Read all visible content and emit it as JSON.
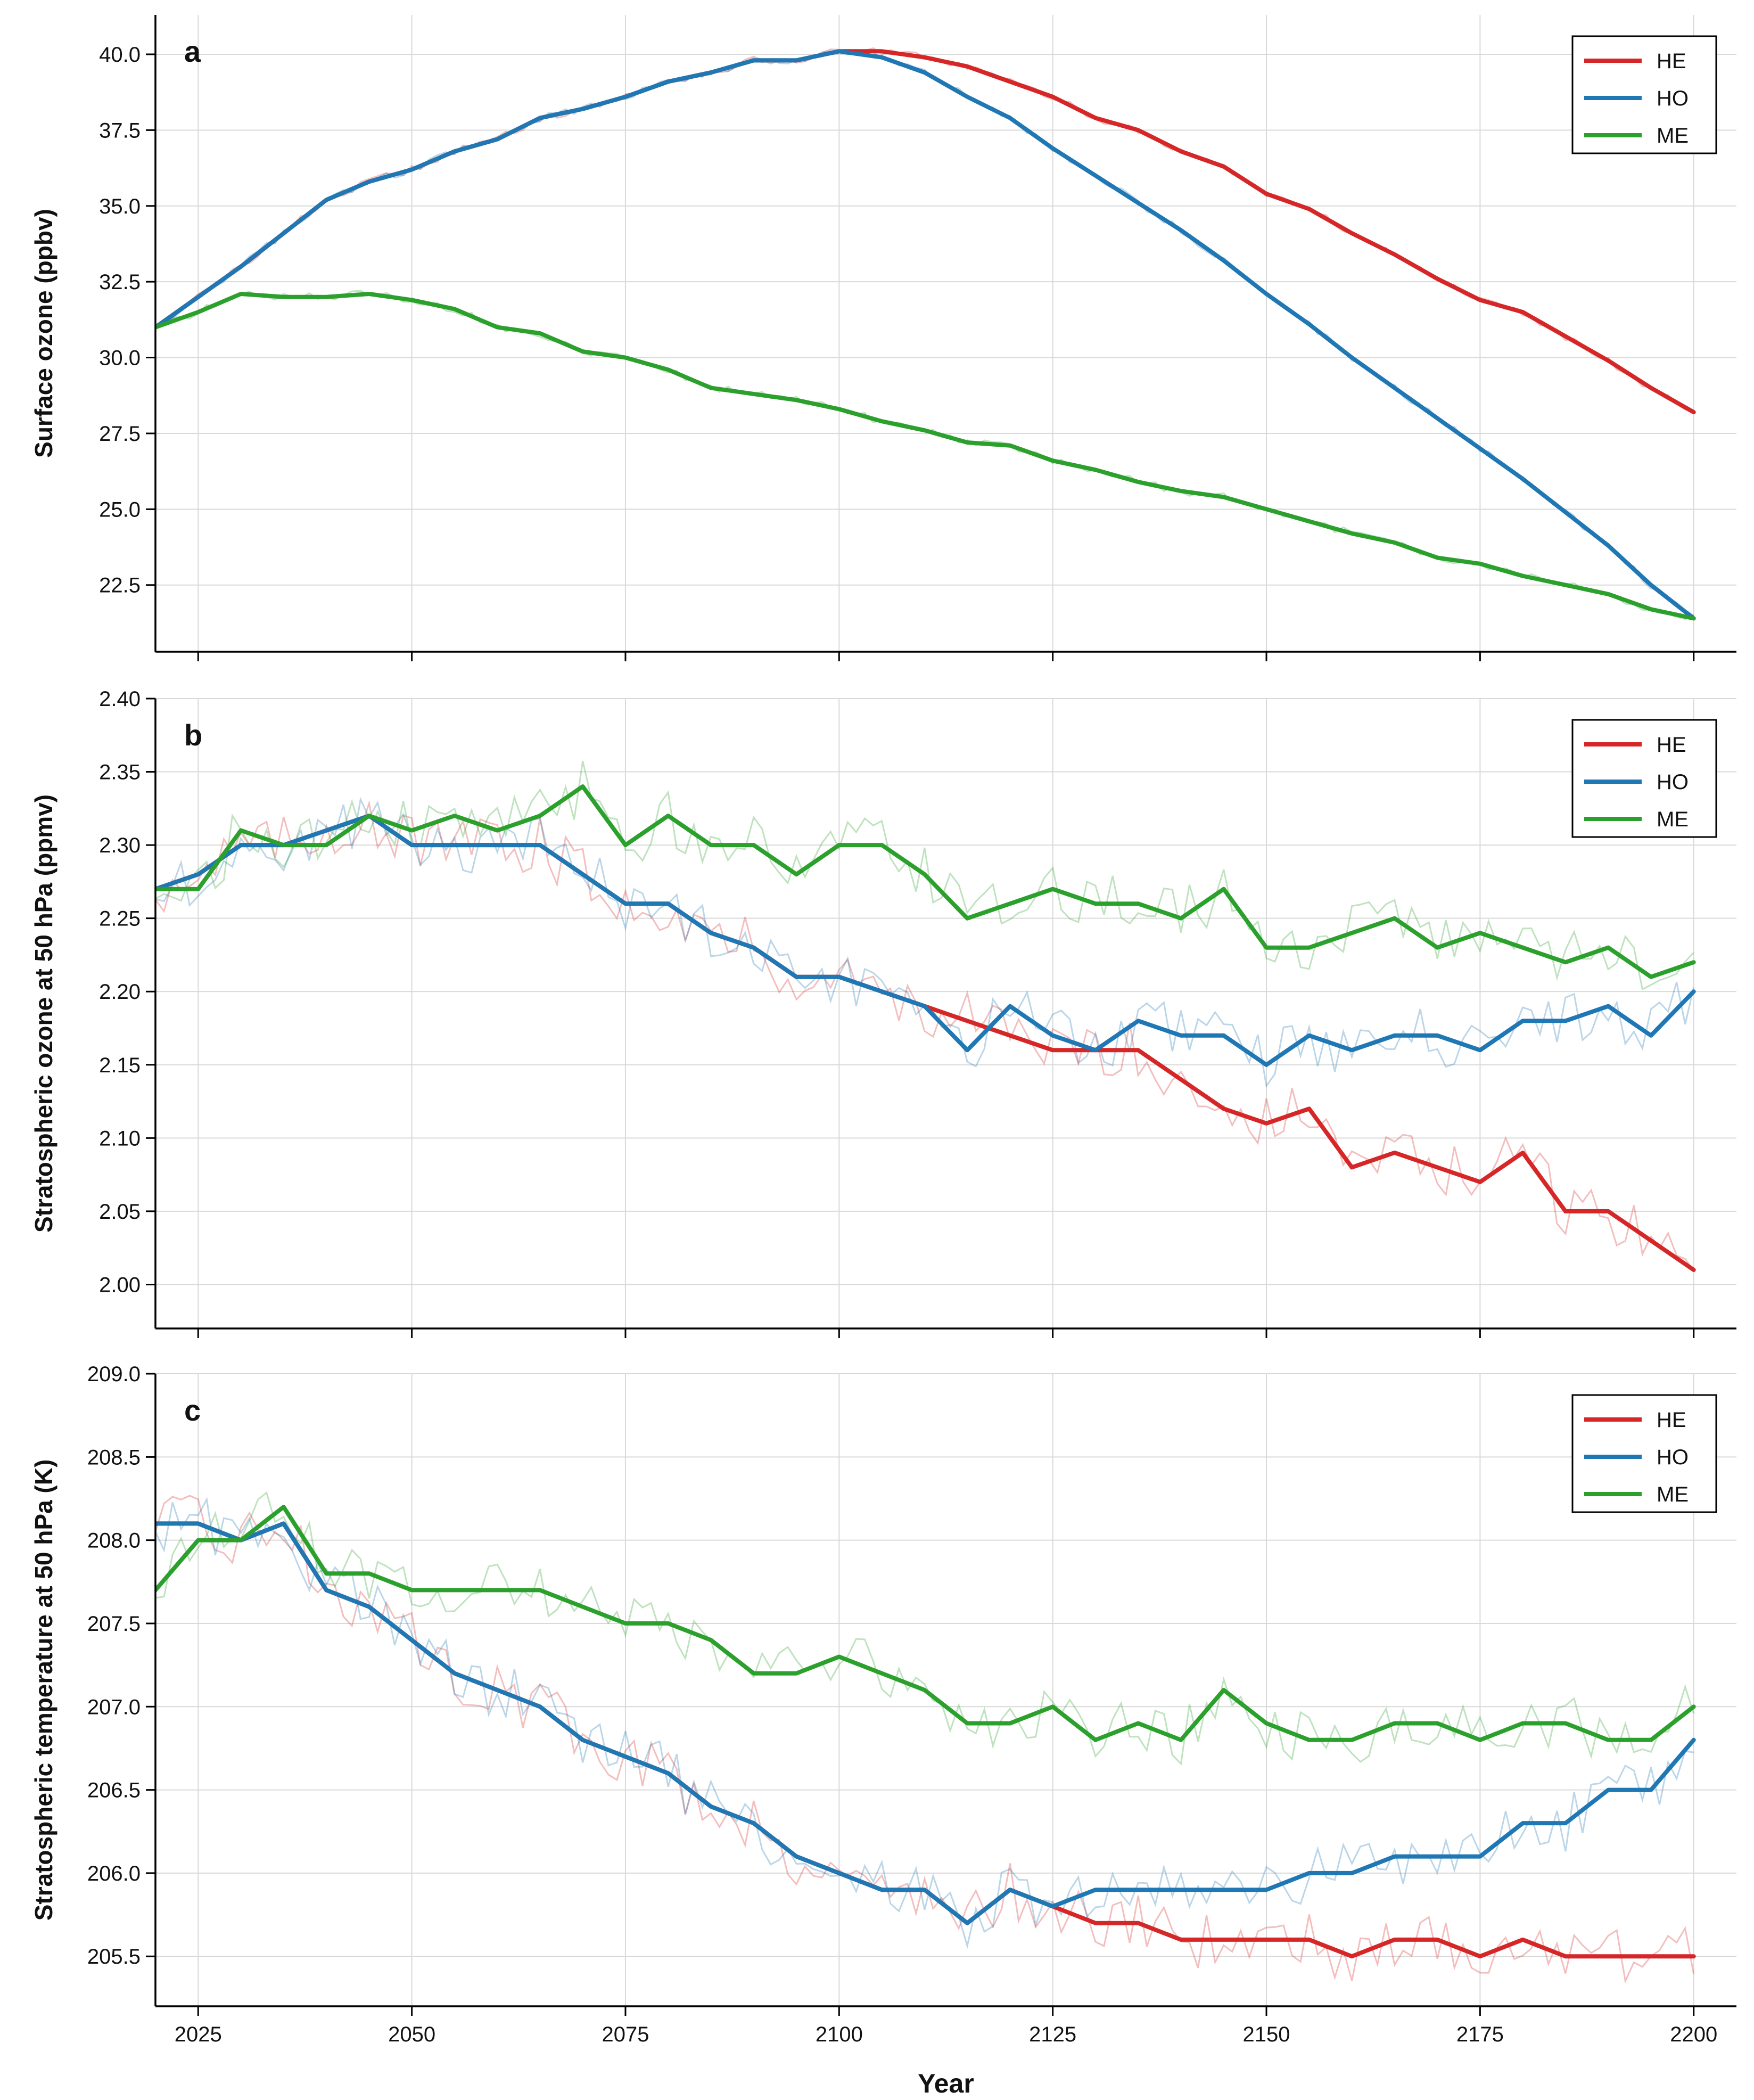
{
  "colors": {
    "HE": "#d62728",
    "HO": "#1f77b4",
    "ME": "#2ca02c"
  },
  "chart_data": [
    {
      "type": "line",
      "panel": "a",
      "ylabel": "Surface ozone (ppbv)",
      "xlabel": "",
      "xlim": [
        2020,
        2205
      ],
      "ylim": [
        20.3,
        41.3
      ],
      "xticks": [
        2025,
        2050,
        2075,
        2100,
        2125,
        2150,
        2175,
        2200
      ],
      "xtick_labels_shown": false,
      "yticks": [
        22.5,
        25.0,
        27.5,
        30.0,
        32.5,
        35.0,
        37.5,
        40.0
      ],
      "ytick_labels": [
        "22.5",
        "25.0",
        "27.5",
        "30.0",
        "32.5",
        "35.0",
        "37.5",
        "40.0"
      ],
      "legend": [
        "HE",
        "HO",
        "ME"
      ],
      "legend_position": "top-right",
      "series": [
        {
          "name": "HE",
          "x": [
            2020,
            2025,
            2030,
            2035,
            2040,
            2045,
            2050,
            2055,
            2060,
            2065,
            2070,
            2075,
            2080,
            2085,
            2090,
            2095,
            2100,
            2105,
            2110,
            2115,
            2120,
            2125,
            2130,
            2135,
            2140,
            2145,
            2150,
            2155,
            2160,
            2165,
            2170,
            2175,
            2180,
            2185,
            2190,
            2195,
            2200
          ],
          "values": [
            31.0,
            32.0,
            33.0,
            34.1,
            35.2,
            35.8,
            36.2,
            36.8,
            37.2,
            37.9,
            38.2,
            38.6,
            39.1,
            39.4,
            39.8,
            39.8,
            40.1,
            40.1,
            39.9,
            39.6,
            39.1,
            38.6,
            37.9,
            37.5,
            36.8,
            36.3,
            35.4,
            34.9,
            34.1,
            33.4,
            32.6,
            31.9,
            31.5,
            30.7,
            29.9,
            29.0,
            28.2
          ]
        },
        {
          "name": "HO",
          "x": [
            2020,
            2025,
            2030,
            2035,
            2040,
            2045,
            2050,
            2055,
            2060,
            2065,
            2070,
            2075,
            2080,
            2085,
            2090,
            2095,
            2100,
            2105,
            2110,
            2115,
            2120,
            2125,
            2130,
            2135,
            2140,
            2145,
            2150,
            2155,
            2160,
            2165,
            2170,
            2175,
            2180,
            2185,
            2190,
            2195,
            2200
          ],
          "values": [
            31.0,
            32.0,
            33.0,
            34.1,
            35.2,
            35.8,
            36.2,
            36.8,
            37.2,
            37.9,
            38.2,
            38.6,
            39.1,
            39.4,
            39.8,
            39.8,
            40.1,
            39.9,
            39.4,
            38.6,
            37.9,
            36.9,
            36.0,
            35.1,
            34.2,
            33.2,
            32.1,
            31.1,
            30.0,
            29.0,
            28.0,
            27.0,
            26.0,
            24.9,
            23.8,
            22.5,
            21.4
          ]
        },
        {
          "name": "ME",
          "x": [
            2020,
            2025,
            2030,
            2035,
            2040,
            2045,
            2050,
            2055,
            2060,
            2065,
            2070,
            2075,
            2080,
            2085,
            2090,
            2095,
            2100,
            2105,
            2110,
            2115,
            2120,
            2125,
            2130,
            2135,
            2140,
            2145,
            2150,
            2155,
            2160,
            2165,
            2170,
            2175,
            2180,
            2185,
            2190,
            2195,
            2200
          ],
          "values": [
            31.0,
            31.5,
            32.1,
            32.0,
            32.0,
            32.1,
            31.9,
            31.6,
            31.0,
            30.8,
            30.2,
            30.0,
            29.6,
            29.0,
            28.8,
            28.6,
            28.3,
            27.9,
            27.6,
            27.2,
            27.1,
            26.6,
            26.3,
            25.9,
            25.6,
            25.4,
            25.0,
            24.6,
            24.2,
            23.9,
            23.4,
            23.2,
            22.8,
            22.5,
            22.2,
            21.7,
            21.4
          ]
        }
      ]
    },
    {
      "type": "line",
      "panel": "b",
      "ylabel": "Stratospheric ozone at 50 hPa (ppmv)",
      "xlabel": "",
      "xlim": [
        2020,
        2205
      ],
      "ylim": [
        1.97,
        2.4
      ],
      "xticks": [
        2025,
        2050,
        2075,
        2100,
        2125,
        2150,
        2175,
        2200
      ],
      "xtick_labels_shown": false,
      "yticks": [
        2.0,
        2.05,
        2.1,
        2.15,
        2.2,
        2.25,
        2.3,
        2.35,
        2.4
      ],
      "ytick_labels": [
        "2.00",
        "2.05",
        "2.10",
        "2.15",
        "2.20",
        "2.25",
        "2.30",
        "2.35",
        "2.40"
      ],
      "legend": [
        "HE",
        "HO",
        "ME"
      ],
      "legend_position": "top-right",
      "series": [
        {
          "name": "HE",
          "x": [
            2020,
            2025,
            2030,
            2035,
            2040,
            2045,
            2050,
            2055,
            2060,
            2065,
            2070,
            2075,
            2080,
            2085,
            2090,
            2095,
            2100,
            2105,
            2110,
            2115,
            2120,
            2125,
            2130,
            2135,
            2140,
            2145,
            2150,
            2155,
            2160,
            2165,
            2170,
            2175,
            2180,
            2185,
            2190,
            2195,
            2200
          ],
          "values": [
            2.27,
            2.28,
            2.3,
            2.3,
            2.31,
            2.32,
            2.3,
            2.3,
            2.3,
            2.3,
            2.28,
            2.26,
            2.26,
            2.24,
            2.23,
            2.21,
            2.21,
            2.2,
            2.19,
            2.18,
            2.17,
            2.16,
            2.16,
            2.16,
            2.14,
            2.12,
            2.11,
            2.12,
            2.08,
            2.09,
            2.08,
            2.07,
            2.09,
            2.05,
            2.05,
            2.03,
            2.01
          ]
        },
        {
          "name": "HO",
          "x": [
            2020,
            2025,
            2030,
            2035,
            2040,
            2045,
            2050,
            2055,
            2060,
            2065,
            2070,
            2075,
            2080,
            2085,
            2090,
            2095,
            2100,
            2105,
            2110,
            2115,
            2120,
            2125,
            2130,
            2135,
            2140,
            2145,
            2150,
            2155,
            2160,
            2165,
            2170,
            2175,
            2180,
            2185,
            2190,
            2195,
            2200
          ],
          "values": [
            2.27,
            2.28,
            2.3,
            2.3,
            2.31,
            2.32,
            2.3,
            2.3,
            2.3,
            2.3,
            2.28,
            2.26,
            2.26,
            2.24,
            2.23,
            2.21,
            2.21,
            2.2,
            2.19,
            2.16,
            2.19,
            2.17,
            2.16,
            2.18,
            2.17,
            2.17,
            2.15,
            2.17,
            2.16,
            2.17,
            2.17,
            2.16,
            2.18,
            2.18,
            2.19,
            2.17,
            2.2
          ]
        },
        {
          "name": "ME",
          "x": [
            2020,
            2025,
            2030,
            2035,
            2040,
            2045,
            2050,
            2055,
            2060,
            2065,
            2070,
            2075,
            2080,
            2085,
            2090,
            2095,
            2100,
            2105,
            2110,
            2115,
            2120,
            2125,
            2130,
            2135,
            2140,
            2145,
            2150,
            2155,
            2160,
            2165,
            2170,
            2175,
            2180,
            2185,
            2190,
            2195,
            2200
          ],
          "values": [
            2.27,
            2.27,
            2.31,
            2.3,
            2.3,
            2.32,
            2.31,
            2.32,
            2.31,
            2.32,
            2.34,
            2.3,
            2.32,
            2.3,
            2.3,
            2.28,
            2.3,
            2.3,
            2.28,
            2.25,
            2.26,
            2.27,
            2.26,
            2.26,
            2.25,
            2.27,
            2.23,
            2.23,
            2.24,
            2.25,
            2.23,
            2.24,
            2.23,
            2.22,
            2.23,
            2.21,
            2.22
          ]
        }
      ]
    },
    {
      "type": "line",
      "panel": "c",
      "ylabel": "Stratospheric temperature at 50 hPa (K)",
      "xlabel": "Year",
      "xlim": [
        2020,
        2205
      ],
      "ylim": [
        205.2,
        209.0
      ],
      "xticks": [
        2025,
        2050,
        2075,
        2100,
        2125,
        2150,
        2175,
        2200
      ],
      "xtick_labels": [
        "2025",
        "2050",
        "2075",
        "2100",
        "2125",
        "2150",
        "2175",
        "2200"
      ],
      "xtick_labels_shown": true,
      "yticks": [
        205.5,
        206.0,
        206.5,
        207.0,
        207.5,
        208.0,
        208.5,
        209.0
      ],
      "ytick_labels": [
        "205.5",
        "206.0",
        "206.5",
        "207.0",
        "207.5",
        "208.0",
        "208.5",
        "209.0"
      ],
      "legend": [
        "HE",
        "HO",
        "ME"
      ],
      "legend_position": "top-right",
      "series": [
        {
          "name": "HE",
          "x": [
            2020,
            2025,
            2030,
            2035,
            2040,
            2045,
            2050,
            2055,
            2060,
            2065,
            2070,
            2075,
            2080,
            2085,
            2090,
            2095,
            2100,
            2105,
            2110,
            2115,
            2120,
            2125,
            2130,
            2135,
            2140,
            2145,
            2150,
            2155,
            2160,
            2165,
            2170,
            2175,
            2180,
            2185,
            2190,
            2195,
            2200
          ],
          "values": [
            208.1,
            208.1,
            208.0,
            208.1,
            207.7,
            207.6,
            207.4,
            207.2,
            207.1,
            207.0,
            206.8,
            206.7,
            206.6,
            206.4,
            206.3,
            206.1,
            206.0,
            205.9,
            205.9,
            205.7,
            205.9,
            205.8,
            205.7,
            205.7,
            205.6,
            205.6,
            205.6,
            205.6,
            205.5,
            205.6,
            205.6,
            205.5,
            205.6,
            205.5,
            205.5,
            205.5,
            205.5
          ]
        },
        {
          "name": "HO",
          "x": [
            2020,
            2025,
            2030,
            2035,
            2040,
            2045,
            2050,
            2055,
            2060,
            2065,
            2070,
            2075,
            2080,
            2085,
            2090,
            2095,
            2100,
            2105,
            2110,
            2115,
            2120,
            2125,
            2130,
            2135,
            2140,
            2145,
            2150,
            2155,
            2160,
            2165,
            2170,
            2175,
            2180,
            2185,
            2190,
            2195,
            2200
          ],
          "values": [
            208.1,
            208.1,
            208.0,
            208.1,
            207.7,
            207.6,
            207.4,
            207.2,
            207.1,
            207.0,
            206.8,
            206.7,
            206.6,
            206.4,
            206.3,
            206.1,
            206.0,
            205.9,
            205.9,
            205.7,
            205.9,
            205.8,
            205.9,
            205.9,
            205.9,
            205.9,
            205.9,
            206.0,
            206.0,
            206.1,
            206.1,
            206.1,
            206.3,
            206.3,
            206.5,
            206.5,
            206.8
          ]
        },
        {
          "name": "ME",
          "x": [
            2020,
            2025,
            2030,
            2035,
            2040,
            2045,
            2050,
            2055,
            2060,
            2065,
            2070,
            2075,
            2080,
            2085,
            2090,
            2095,
            2100,
            2105,
            2110,
            2115,
            2120,
            2125,
            2130,
            2135,
            2140,
            2145,
            2150,
            2155,
            2160,
            2165,
            2170,
            2175,
            2180,
            2185,
            2190,
            2195,
            2200
          ],
          "values": [
            207.7,
            208.0,
            208.0,
            208.2,
            207.8,
            207.8,
            207.7,
            207.7,
            207.7,
            207.7,
            207.6,
            207.5,
            207.5,
            207.4,
            207.2,
            207.2,
            207.3,
            207.2,
            207.1,
            206.9,
            206.9,
            207.0,
            206.8,
            206.9,
            206.8,
            207.1,
            206.9,
            206.8,
            206.8,
            206.9,
            206.9,
            206.8,
            206.9,
            206.9,
            206.8,
            206.8,
            207.0
          ]
        }
      ]
    }
  ]
}
